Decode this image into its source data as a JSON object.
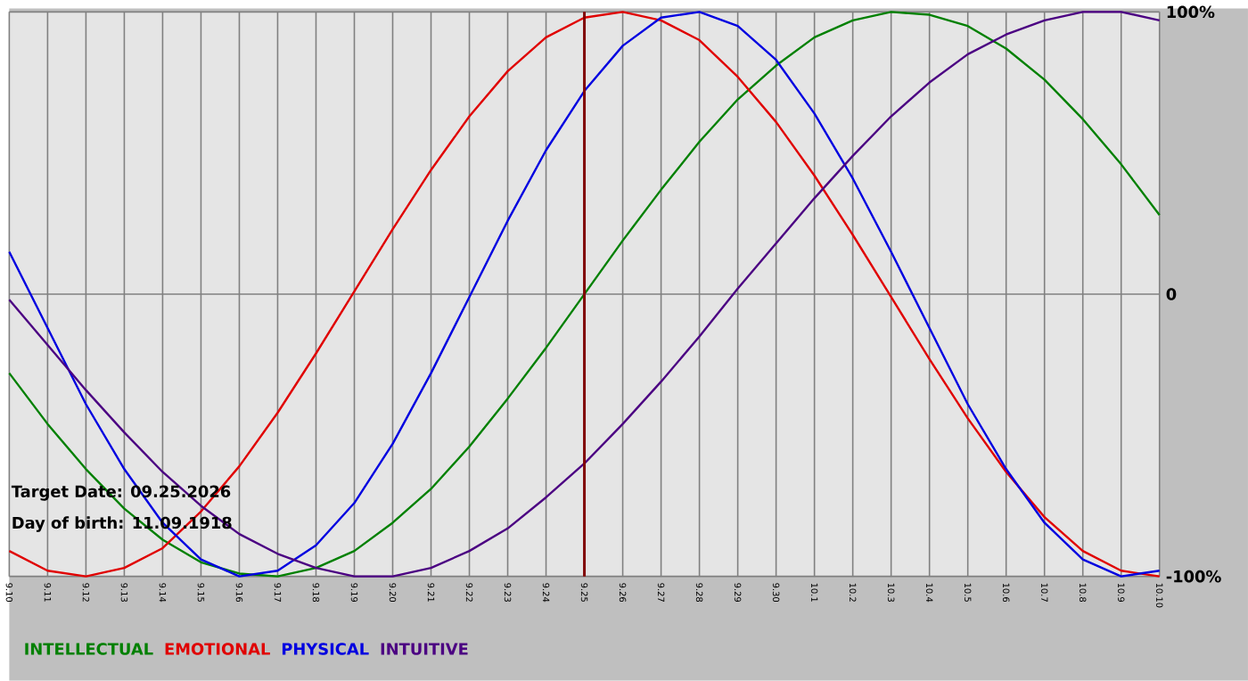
{
  "chart_data": {
    "type": "line",
    "categories": [
      "9.10",
      "9.11",
      "9.12",
      "9.13",
      "9.14",
      "9.15",
      "9.16",
      "9.17",
      "9.18",
      "9.19",
      "9.20",
      "9.21",
      "9.22",
      "9.23",
      "9.24",
      "9.25",
      "9.26",
      "9.27",
      "9.28",
      "9.29",
      "9.30",
      "10.1",
      "10.2",
      "10.3",
      "10.4",
      "10.5",
      "10.6",
      "10.7",
      "10.8",
      "10.9",
      "10.10"
    ],
    "series": [
      {
        "name": "INTELLECTUAL",
        "color": "#008000",
        "values": [
          -28,
          -46,
          -62,
          -76,
          -87,
          -95,
          -99,
          -100,
          -97,
          -91,
          -81,
          -69,
          -54,
          -37,
          -19,
          0,
          19,
          37,
          54,
          69,
          81,
          91,
          97,
          100,
          99,
          95,
          87,
          76,
          62,
          46,
          28
        ]
      },
      {
        "name": "EMOTIONAL",
        "color": "#e00000",
        "values": [
          -91,
          -98,
          -100,
          -97,
          -90,
          -77,
          -61,
          -42,
          -21,
          1,
          23,
          44,
          63,
          79,
          91,
          98,
          100,
          97,
          90,
          77,
          61,
          42,
          21,
          -1,
          -23,
          -44,
          -63,
          -79,
          -91,
          -98,
          -100
        ]
      },
      {
        "name": "PHYSICAL",
        "color": "#0000e0",
        "values": [
          15,
          -12,
          -39,
          -62,
          -81,
          -94,
          -100,
          -98,
          -89,
          -74,
          -53,
          -28,
          -1,
          26,
          51,
          72,
          88,
          98,
          100,
          95,
          83,
          64,
          41,
          15,
          -12,
          -39,
          -62,
          -81,
          -94,
          -100,
          -98
        ]
      },
      {
        "name": "INTUITIVE",
        "color": "#4b0082",
        "values": [
          -2,
          -18,
          -34,
          -49,
          -63,
          -75,
          -85,
          -92,
          -97,
          -100,
          -100,
          -97,
          -91,
          -83,
          -72,
          -60,
          -46,
          -31,
          -15,
          2,
          18,
          34,
          49,
          63,
          75,
          85,
          92,
          97,
          100,
          100,
          97
        ]
      }
    ],
    "ylim": [
      -100,
      100
    ],
    "yticks": [
      {
        "value": 100,
        "label": "100%"
      },
      0,
      {
        "value": -100,
        "label": "-100%"
      }
    ],
    "ref_lines": [
      {
        "axis": "x",
        "value": "9.25",
        "color": "#800000"
      }
    ],
    "annotations": [
      "Target Date: 09.25.2026",
      "Day of birth: 11.09.1918"
    ],
    "grid": true,
    "legend": "bottom",
    "marker": "none",
    "line_style": "solid"
  }
}
